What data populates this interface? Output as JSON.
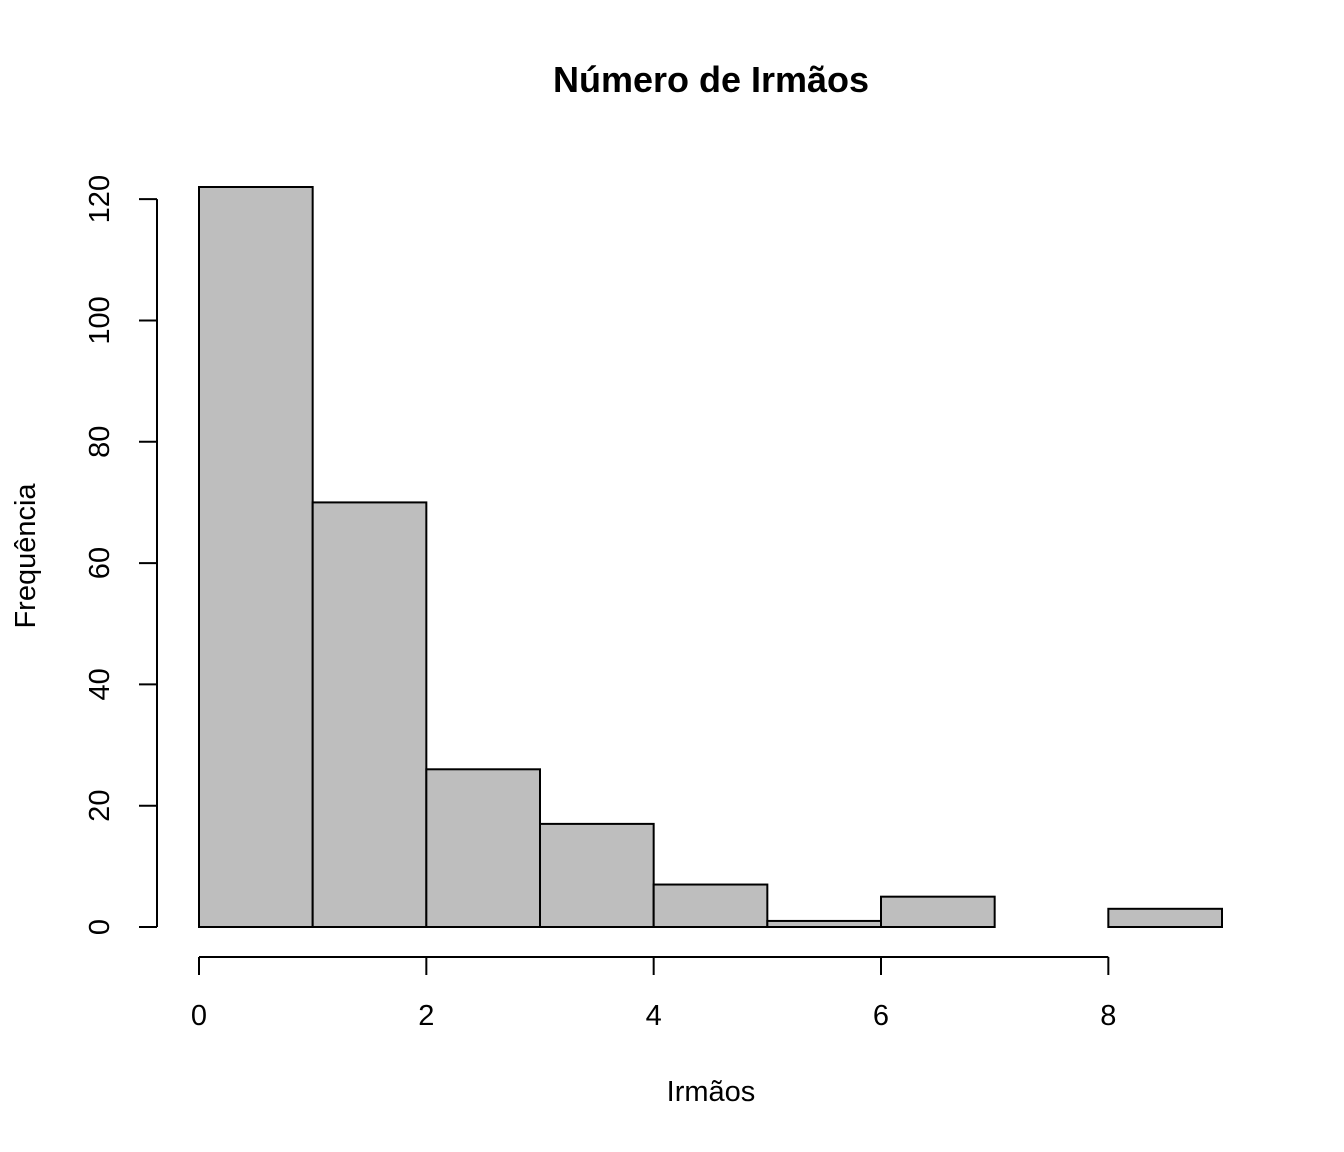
{
  "chart_data": {
    "type": "bar",
    "title": "Número de Irmãos",
    "xlabel": "Irmãos",
    "ylabel": "Frequência",
    "bins": [
      {
        "x0": 0,
        "x1": 1,
        "count": 122
      },
      {
        "x0": 1,
        "x1": 2,
        "count": 70
      },
      {
        "x0": 2,
        "x1": 3,
        "count": 26
      },
      {
        "x0": 3,
        "x1": 4,
        "count": 17
      },
      {
        "x0": 4,
        "x1": 5,
        "count": 7
      },
      {
        "x0": 5,
        "x1": 6,
        "count": 1
      },
      {
        "x0": 6,
        "x1": 7,
        "count": 5
      },
      {
        "x0": 7,
        "x1": 8,
        "count": 0
      },
      {
        "x0": 8,
        "x1": 9,
        "count": 3
      }
    ],
    "xlim": [
      0,
      9
    ],
    "ylim": [
      0,
      122
    ],
    "x_ticks": [
      0,
      2,
      4,
      6,
      8
    ],
    "y_ticks": [
      0,
      20,
      40,
      60,
      80,
      100,
      120
    ],
    "bar_color": "#bebebe",
    "grid": false
  }
}
